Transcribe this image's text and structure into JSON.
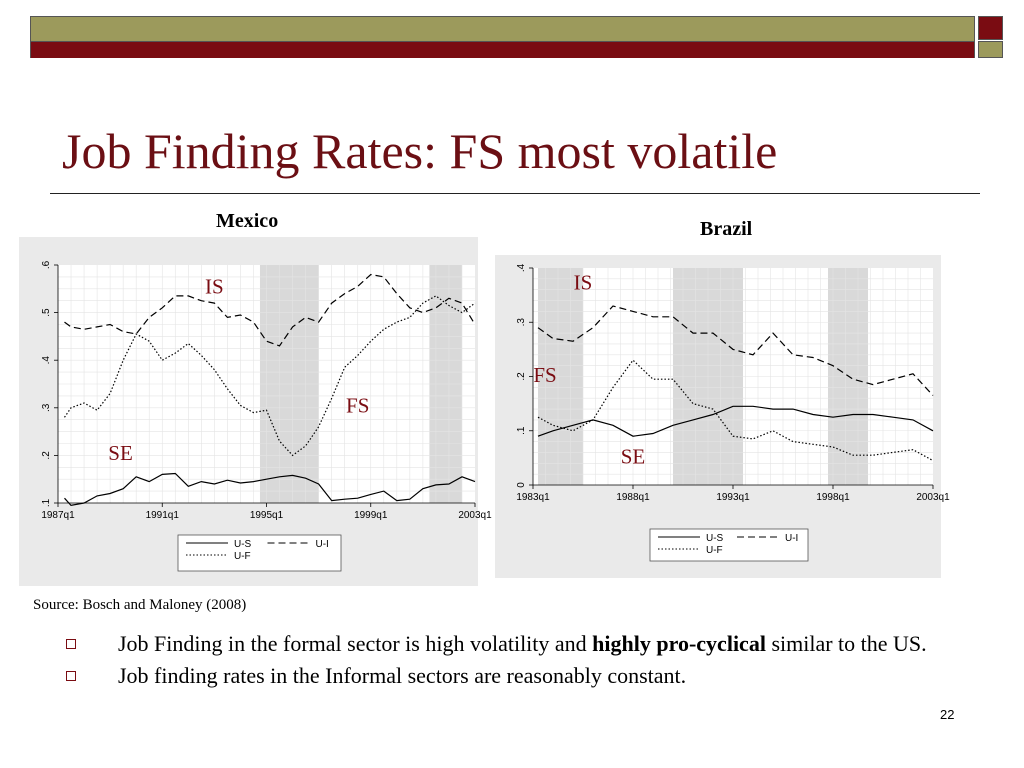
{
  "slide": {
    "title": "Job Finding Rates: FS most volatile",
    "source": "Source: Bosch and Maloney (2008)",
    "bullets": [
      {
        "before": "Job Finding in the formal sector is high volatility and ",
        "bold": "highly pro-cyclical",
        "after": " similar to the US."
      },
      {
        "before": "Job finding rates in the Informal sectors are reasonably constant.",
        "bold": "",
        "after": ""
      }
    ],
    "page_number": "22",
    "colors": {
      "title": "#6b0f14",
      "olive_bar": "#9c9a5c",
      "maroon_bar": "#7a0c12",
      "region_label": "#7a0c12",
      "recession_shade": "#d9d9d9",
      "plot_bg": "#ffffff",
      "panel_bg": "#eaeaea"
    }
  },
  "chart_data": [
    {
      "type": "line",
      "title": "Mexico",
      "xlabel": "",
      "ylabel": "",
      "x_range": [
        1987.0,
        2003.0
      ],
      "ylim": [
        0.1,
        0.6
      ],
      "yticks": [
        0.1,
        0.2,
        0.3,
        0.4,
        0.5,
        0.6
      ],
      "ytick_labels": [
        ".1",
        ".2",
        ".3",
        ".4",
        ".5",
        ".6"
      ],
      "xticks": [
        1987.0,
        1991.0,
        1995.0,
        1999.0,
        2003.0
      ],
      "xtick_labels": [
        "1987q1",
        "1991q1",
        "1995q1",
        "1999q1",
        "2003q1"
      ],
      "grid": true,
      "legend": {
        "position": "bottom",
        "entries": [
          "U-S",
          "U-I",
          "U-F"
        ]
      },
      "shaded_periods": [
        [
          1994.75,
          1997.0
        ],
        [
          2001.25,
          2002.5
        ]
      ],
      "annotations": [
        {
          "text": "IS",
          "x": 1993.0,
          "y": 0.54
        },
        {
          "text": "FS",
          "x": 1998.5,
          "y": 0.29
        },
        {
          "text": "SE",
          "x": 1989.4,
          "y": 0.19
        }
      ],
      "series": [
        {
          "name": "U-S",
          "style": "solid",
          "x": [
            1987.25,
            1987.5,
            1988,
            1988.5,
            1989,
            1989.5,
            1990,
            1990.5,
            1991,
            1991.5,
            1992,
            1992.5,
            1993,
            1993.5,
            1994,
            1994.5,
            1995,
            1995.5,
            1996,
            1996.5,
            1997,
            1997.5,
            1998,
            1998.5,
            1999,
            1999.5,
            2000,
            2000.5,
            2001,
            2001.5,
            2002,
            2002.5,
            2003
          ],
          "y": [
            0.11,
            0.095,
            0.1,
            0.115,
            0.12,
            0.13,
            0.155,
            0.145,
            0.16,
            0.162,
            0.135,
            0.145,
            0.14,
            0.148,
            0.142,
            0.145,
            0.15,
            0.155,
            0.158,
            0.152,
            0.14,
            0.105,
            0.108,
            0.11,
            0.118,
            0.125,
            0.105,
            0.108,
            0.13,
            0.138,
            0.14,
            0.155,
            0.145
          ]
        },
        {
          "name": "U-I",
          "style": "dashed",
          "x": [
            1987.25,
            1987.5,
            1988,
            1988.5,
            1989,
            1989.5,
            1990,
            1990.5,
            1991,
            1991.5,
            1992,
            1992.5,
            1993,
            1993.5,
            1994,
            1994.5,
            1995,
            1995.5,
            1996,
            1996.5,
            1997,
            1997.5,
            1998,
            1998.5,
            1999,
            1999.5,
            2000,
            2000.5,
            2001,
            2001.5,
            2002,
            2002.5,
            2003
          ],
          "y": [
            0.48,
            0.47,
            0.465,
            0.47,
            0.475,
            0.46,
            0.455,
            0.49,
            0.51,
            0.535,
            0.535,
            0.525,
            0.52,
            0.49,
            0.495,
            0.48,
            0.44,
            0.43,
            0.47,
            0.49,
            0.48,
            0.52,
            0.54,
            0.555,
            0.58,
            0.575,
            0.54,
            0.51,
            0.5,
            0.51,
            0.53,
            0.52,
            0.475
          ]
        },
        {
          "name": "U-F",
          "style": "dotted",
          "x": [
            1987.25,
            1987.5,
            1988,
            1988.5,
            1989,
            1989.5,
            1990,
            1990.5,
            1991,
            1991.5,
            1992,
            1992.5,
            1993,
            1993.5,
            1994,
            1994.5,
            1995,
            1995.5,
            1996,
            1996.5,
            1997,
            1997.5,
            1998,
            1998.5,
            1999,
            1999.5,
            2000,
            2000.5,
            2001,
            2001.5,
            2002,
            2002.5,
            2003
          ],
          "y": [
            0.28,
            0.3,
            0.31,
            0.295,
            0.33,
            0.4,
            0.455,
            0.44,
            0.4,
            0.415,
            0.435,
            0.41,
            0.38,
            0.34,
            0.305,
            0.29,
            0.295,
            0.23,
            0.2,
            0.22,
            0.26,
            0.32,
            0.385,
            0.41,
            0.44,
            0.465,
            0.48,
            0.49,
            0.52,
            0.535,
            0.515,
            0.5,
            0.52
          ]
        }
      ]
    },
    {
      "type": "line",
      "title": "Brazil",
      "xlabel": "",
      "ylabel": "",
      "x_range": [
        1983.0,
        2003.0
      ],
      "ylim": [
        0.0,
        0.4
      ],
      "yticks": [
        0.0,
        0.1,
        0.2,
        0.3,
        0.4
      ],
      "ytick_labels": [
        "0",
        ".1",
        ".2",
        ".3",
        ".4"
      ],
      "xticks": [
        1983.0,
        1988.0,
        1993.0,
        1998.0,
        2003.0
      ],
      "xtick_labels": [
        "1983q1",
        "1988q1",
        "1993q1",
        "1998q1",
        "2003q1"
      ],
      "grid": true,
      "legend": {
        "position": "bottom",
        "entries": [
          "U-S",
          "U-I",
          "U-F"
        ]
      },
      "shaded_periods": [
        [
          1983.25,
          1985.5
        ],
        [
          1990.0,
          1993.5
        ],
        [
          1997.75,
          1999.75
        ]
      ],
      "annotations": [
        {
          "text": "IS",
          "x": 1985.5,
          "y": 0.36
        },
        {
          "text": "FS",
          "x": 1983.6,
          "y": 0.19
        },
        {
          "text": "SE",
          "x": 1988.0,
          "y": 0.04
        }
      ],
      "series": [
        {
          "name": "U-S",
          "style": "solid",
          "x": [
            1983.25,
            1984,
            1985,
            1986,
            1987,
            1988,
            1989,
            1990,
            1991,
            1992,
            1993,
            1994,
            1995,
            1996,
            1997,
            1998,
            1999,
            2000,
            2001,
            2002,
            2003
          ],
          "y": [
            0.09,
            0.1,
            0.11,
            0.12,
            0.11,
            0.09,
            0.095,
            0.11,
            0.12,
            0.13,
            0.145,
            0.145,
            0.14,
            0.14,
            0.13,
            0.125,
            0.13,
            0.13,
            0.125,
            0.12,
            0.1
          ]
        },
        {
          "name": "U-I",
          "style": "dashed",
          "x": [
            1983.25,
            1984,
            1985,
            1986,
            1987,
            1988,
            1989,
            1990,
            1991,
            1992,
            1993,
            1994,
            1995,
            1996,
            1997,
            1998,
            1999,
            2000,
            2001,
            2002,
            2003
          ],
          "y": [
            0.29,
            0.27,
            0.265,
            0.29,
            0.33,
            0.32,
            0.31,
            0.31,
            0.28,
            0.28,
            0.25,
            0.24,
            0.28,
            0.24,
            0.235,
            0.22,
            0.195,
            0.185,
            0.195,
            0.205,
            0.165
          ]
        },
        {
          "name": "U-F",
          "style": "dotted",
          "x": [
            1983.25,
            1984,
            1985,
            1986,
            1987,
            1988,
            1989,
            1990,
            1991,
            1992,
            1993,
            1994,
            1995,
            1996,
            1997,
            1998,
            1999,
            2000,
            2001,
            2002,
            2003
          ],
          "y": [
            0.125,
            0.11,
            0.1,
            0.12,
            0.18,
            0.23,
            0.195,
            0.195,
            0.15,
            0.14,
            0.09,
            0.085,
            0.1,
            0.08,
            0.075,
            0.07,
            0.055,
            0.055,
            0.06,
            0.065,
            0.045
          ]
        }
      ]
    }
  ]
}
